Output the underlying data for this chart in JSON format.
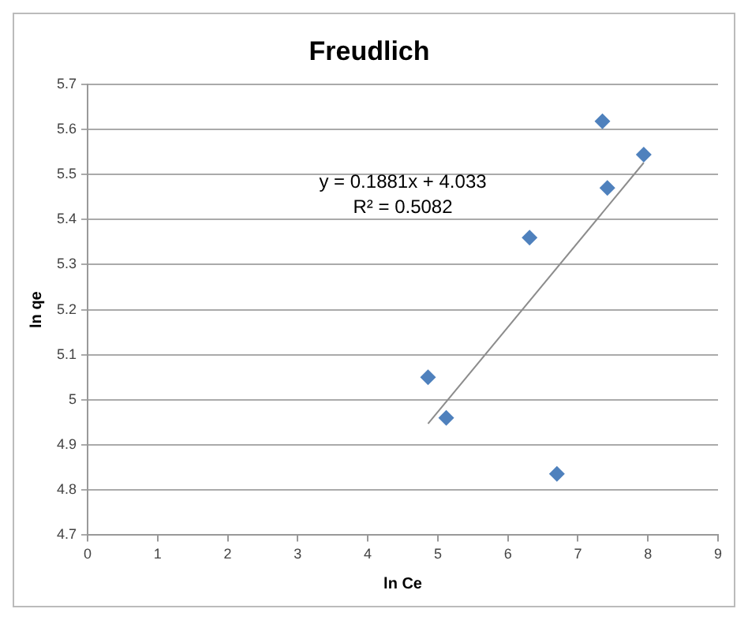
{
  "chart_data": {
    "type": "scatter",
    "title": "Freudlich",
    "xlabel": "ln Ce",
    "ylabel": "ln qe",
    "series": [
      {
        "color": "#4f81bd",
        "marker": "diamond",
        "x": [
          4.86,
          5.12,
          6.31,
          6.7,
          7.35,
          7.42,
          7.94
        ],
        "values": [
          5.05,
          4.96,
          5.36,
          4.836,
          5.618,
          5.47,
          5.544
        ]
      },
      {
        "type": "line",
        "color": "#8c8c8c",
        "marker": "none",
        "x": [
          4.86,
          7.94
        ],
        "values": [
          4.947,
          5.526
        ]
      }
    ],
    "annotations": [
      "y = 0.1881x + 4.033",
      "R² = 0.5082"
    ],
    "xlim": [
      0,
      9
    ],
    "xticks": [
      0,
      1,
      2,
      3,
      4,
      5,
      6,
      7,
      8,
      9
    ],
    "ylim": [
      4.7,
      5.7
    ],
    "yticks": [
      4.7,
      4.8,
      4.9,
      5,
      5.1,
      5.2,
      5.3,
      5.4,
      5.5,
      5.6,
      5.7
    ],
    "grid": "y",
    "legend": false
  }
}
